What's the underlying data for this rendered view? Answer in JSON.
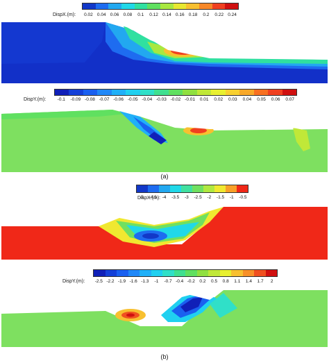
{
  "captions": {
    "a": "(a)",
    "b": "(b)"
  },
  "legends": {
    "a_dispx": {
      "label": "DispX.(m):",
      "ticks": [
        "0.02",
        "0.04",
        "0.06",
        "0.08",
        "0.1",
        "0.12",
        "0.14",
        "0.16",
        "0.18",
        "0.2",
        "0.22",
        "0.24"
      ],
      "colors": [
        "#1238c8",
        "#1e6cf0",
        "#22a8f0",
        "#20d8e8",
        "#30e0a0",
        "#60e060",
        "#a8e840",
        "#e8e830",
        "#f8c030",
        "#f88828",
        "#f04020",
        "#d01010"
      ]
    },
    "a_dispy": {
      "label": "DispY.(m):",
      "ticks": [
        "-0.1",
        "-0.09",
        "-0.08",
        "-0.07",
        "-0.06",
        "-0.05",
        "-0.04",
        "-0.03",
        "-0.02",
        "-0.01",
        "0.01",
        "0.02",
        "0.03",
        "0.04",
        "0.05",
        "0.06",
        "0.07"
      ],
      "colors": [
        "#1020b8",
        "#1440d8",
        "#1a60f0",
        "#2088f8",
        "#20b0f8",
        "#20d0f0",
        "#30e0c8",
        "#40e090",
        "#60e060",
        "#90e040",
        "#c0e838",
        "#e8f030",
        "#f8d030",
        "#f8a828",
        "#f87020",
        "#f04020",
        "#d01010"
      ]
    },
    "b_dispx": {
      "label": "DispX.(m):",
      "ticks": [
        "-5",
        "-4.5",
        "-4",
        "-3.5",
        "-3",
        "-2.5",
        "-2",
        "-1.5",
        "-1",
        "-0.5"
      ],
      "colors": [
        "#1238c8",
        "#1e6cf0",
        "#22a8f0",
        "#20d8e8",
        "#40e0a0",
        "#70e060",
        "#b0e840",
        "#f0e830",
        "#f8a028",
        "#f02818"
      ]
    },
    "b_dispy": {
      "label": "DispY.(m):",
      "ticks": [
        "-2.5",
        "-2.2",
        "-1.9",
        "-1.6",
        "-1.3",
        "-1",
        "-0.7",
        "-0.4",
        "-0.2",
        "0.2",
        "0.5",
        "0.8",
        "1.1",
        "1.4",
        "1.7",
        "2"
      ],
      "colors": [
        "#1020b8",
        "#1440d8",
        "#1a60f0",
        "#2088f8",
        "#20b0f8",
        "#20d0f0",
        "#30e0c8",
        "#40e090",
        "#60e060",
        "#90e040",
        "#c0e838",
        "#e8f030",
        "#f8c030",
        "#f89028",
        "#f05020",
        "#d01010"
      ]
    }
  }
}
